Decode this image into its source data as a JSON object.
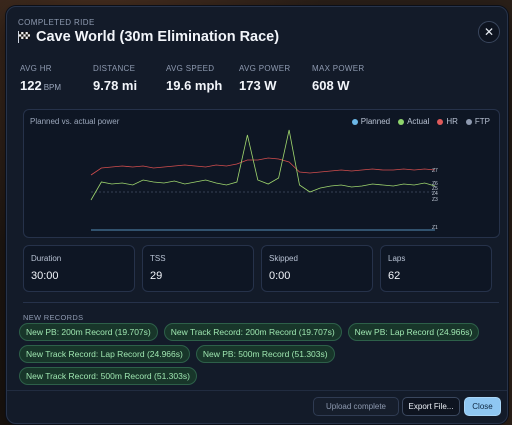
{
  "header": {
    "eyebrow": "COMPLETED RIDE",
    "flag_icon": "checkered-flag-icon",
    "title": "Cave World (30m Elimination Race)",
    "close_icon": "close-icon"
  },
  "stats": [
    {
      "label": "AVG HR",
      "value": "122",
      "unit": "BPM"
    },
    {
      "label": "DISTANCE",
      "value": "9.78 mi",
      "unit": ""
    },
    {
      "label": "AVG SPEED",
      "value": "19.6 mph",
      "unit": ""
    },
    {
      "label": "AVG POWER",
      "value": "173 W",
      "unit": ""
    },
    {
      "label": "MAX POWER",
      "value": "608 W",
      "unit": ""
    }
  ],
  "chart": {
    "title": "Planned vs. actual power",
    "legend": [
      {
        "name": "Planned",
        "color": "#6cb8e8"
      },
      {
        "name": "Actual",
        "color": "#8ed46c"
      },
      {
        "name": "HR",
        "color": "#e05a5a"
      },
      {
        "name": "FTP",
        "color": "#8e9ab0"
      }
    ],
    "zones": [
      "Z7",
      "Z6",
      "Z5",
      "Z4",
      "Z3",
      "Z1"
    ]
  },
  "chart_data": {
    "type": "line",
    "title": "Planned vs. actual power",
    "series": [
      {
        "name": "Planned",
        "values": [
          0.2
        ]
      },
      {
        "name": "Actual",
        "values": [
          0.3,
          0.48,
          0.46,
          0.47,
          0.45,
          0.5,
          0.48,
          0.47,
          0.49,
          0.46,
          0.48,
          0.5,
          0.47,
          0.45,
          0.48,
          0.95,
          0.5,
          0.46,
          0.52,
          1.0,
          0.45,
          0.38,
          0.42,
          0.44,
          0.45,
          0.43,
          0.44,
          0.46,
          0.45,
          0.44,
          0.46,
          0.45,
          0.47,
          0.44
        ]
      },
      {
        "name": "HR",
        "values": [
          0.55,
          0.62,
          0.63,
          0.64,
          0.63,
          0.64,
          0.62,
          0.63,
          0.64,
          0.65,
          0.64,
          0.63,
          0.65,
          0.64,
          0.66,
          0.7,
          0.7,
          0.72,
          0.71,
          0.68,
          0.58,
          0.57,
          0.58,
          0.59,
          0.6,
          0.59,
          0.6,
          0.61,
          0.6,
          0.6,
          0.61,
          0.6,
          0.61,
          0.6
        ]
      },
      {
        "name": "FTP",
        "values": [
          0.55
        ]
      }
    ]
  },
  "cards": [
    {
      "label": "Duration",
      "value": "30:00"
    },
    {
      "label": "TSS",
      "value": "29"
    },
    {
      "label": "Skipped",
      "value": "0:00"
    },
    {
      "label": "Laps",
      "value": "62"
    }
  ],
  "records": {
    "label": "NEW RECORDS",
    "items": [
      "New PB: 200m Record (19.707s)",
      "New Track Record: 200m Record (19.707s)",
      "New PB: Lap Record (24.966s)",
      "New Track Record: Lap Record (24.966s)",
      "New PB: 500m Record (51.303s)",
      "New Track Record: 500m Record (51.303s)"
    ]
  },
  "footer": {
    "upload": "Upload complete",
    "export": "Export File...",
    "close": "Close"
  }
}
